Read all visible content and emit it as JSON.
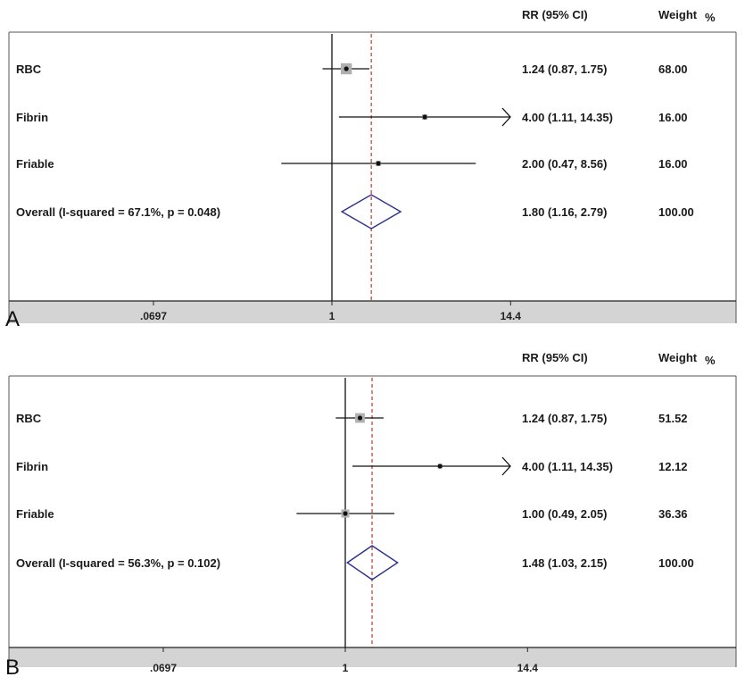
{
  "chart_data": [
    {
      "type": "forest",
      "panel_label": "A",
      "x_scale": "log",
      "x_ticks": [
        {
          "value": 0.0697,
          "label": ".0697"
        },
        {
          "value": 1,
          "label": "1"
        },
        {
          "value": 14.4,
          "label": "14.4"
        }
      ],
      "ref_line": 1.8,
      "header": {
        "rr": "RR (95% CI)",
        "weight": "Weight",
        "weight_unit": "%"
      },
      "rows": [
        {
          "label": "RBC",
          "rr": 1.24,
          "lo": 0.87,
          "hi": 1.75,
          "ci_text": "1.24 (0.87, 1.75)",
          "weight": "68.00",
          "overall": false,
          "arrow": false
        },
        {
          "label": "Fibrin",
          "rr": 4.0,
          "lo": 1.11,
          "hi": 14.35,
          "ci_text": "4.00 (1.11, 14.35)",
          "weight": "16.00",
          "overall": false,
          "arrow": true
        },
        {
          "label": "Friable",
          "rr": 2.0,
          "lo": 0.47,
          "hi": 8.56,
          "ci_text": "2.00 (0.47, 8.56)",
          "weight": "16.00",
          "overall": false,
          "arrow": false
        },
        {
          "label": "Overall  (I-squared = 67.1%, p = 0.048)",
          "rr": 1.8,
          "lo": 1.16,
          "hi": 2.79,
          "ci_text": "1.80 (1.16, 2.79)",
          "weight": "100.00",
          "overall": true,
          "arrow": false
        }
      ]
    },
    {
      "type": "forest",
      "panel_label": "B",
      "x_scale": "log",
      "x_ticks": [
        {
          "value": 0.0697,
          "label": ".0697"
        },
        {
          "value": 1,
          "label": "1"
        },
        {
          "value": 14.4,
          "label": "14.4"
        }
      ],
      "ref_line": 1.48,
      "header": {
        "rr": "RR (95% CI)",
        "weight": "Weight",
        "weight_unit": "%"
      },
      "rows": [
        {
          "label": "RBC",
          "rr": 1.24,
          "lo": 0.87,
          "hi": 1.75,
          "ci_text": "1.24 (0.87, 1.75)",
          "weight": "51.52",
          "overall": false,
          "arrow": false
        },
        {
          "label": "Fibrin",
          "rr": 4.0,
          "lo": 1.11,
          "hi": 14.35,
          "ci_text": "4.00 (1.11, 14.35)",
          "weight": "12.12",
          "overall": false,
          "arrow": true
        },
        {
          "label": "Friable",
          "rr": 1.0,
          "lo": 0.49,
          "hi": 2.05,
          "ci_text": "1.00 (0.49, 2.05)",
          "weight": "36.36",
          "overall": false,
          "arrow": false
        },
        {
          "label": "Overall  (I-squared = 56.3%, p = 0.102)",
          "rr": 1.48,
          "lo": 1.03,
          "hi": 2.15,
          "ci_text": "1.48 (1.03, 2.15)",
          "weight": "100.00",
          "overall": true,
          "arrow": false
        }
      ]
    }
  ],
  "colors": {
    "axis_band": "#d4d4d4",
    "frame": "#555555",
    "ref_line": "#c0392b",
    "diamond": "#2b2f8f",
    "weight_box": "#b0b0b0",
    "ci_line": "#111111"
  }
}
